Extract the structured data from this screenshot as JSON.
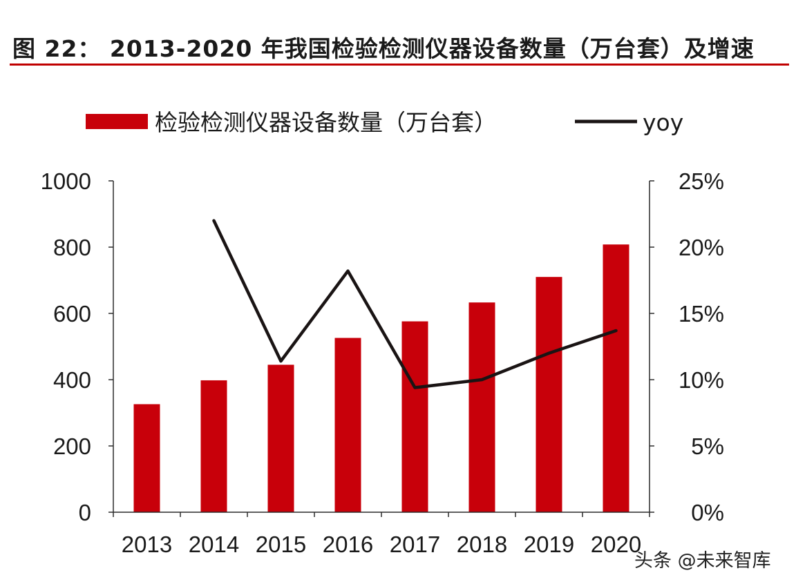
{
  "title": "图 22：  2013-2020 年我国检验检测仪器设备数量（万台套）及增速",
  "watermark": "头条 @未来智库",
  "colors": {
    "bar": "#c8000a",
    "line": "#1a1414",
    "title_rule": "#c00000"
  },
  "chart_data": {
    "type": "bar",
    "categories": [
      "2013",
      "2014",
      "2015",
      "2016",
      "2017",
      "2018",
      "2019",
      "2020"
    ],
    "series": [
      {
        "name": "检验检测仪器设备数量（万台套）",
        "type": "bar",
        "axis": "left",
        "values": [
          326,
          398,
          445,
          526,
          576,
          633,
          710,
          808
        ]
      },
      {
        "name": "yoy",
        "type": "line",
        "axis": "right",
        "values": [
          null,
          0.22,
          0.114,
          0.182,
          0.094,
          0.1,
          0.12,
          0.137
        ]
      }
    ],
    "y_left": {
      "lim": [
        0,
        1000
      ],
      "ticks": [
        "0",
        "200",
        "400",
        "600",
        "800",
        "1000"
      ]
    },
    "y_right": {
      "lim": [
        0,
        0.25
      ],
      "ticks": [
        "0%",
        "5%",
        "10%",
        "15%",
        "20%",
        "25%"
      ]
    },
    "legend_position": "top",
    "grid": false
  }
}
